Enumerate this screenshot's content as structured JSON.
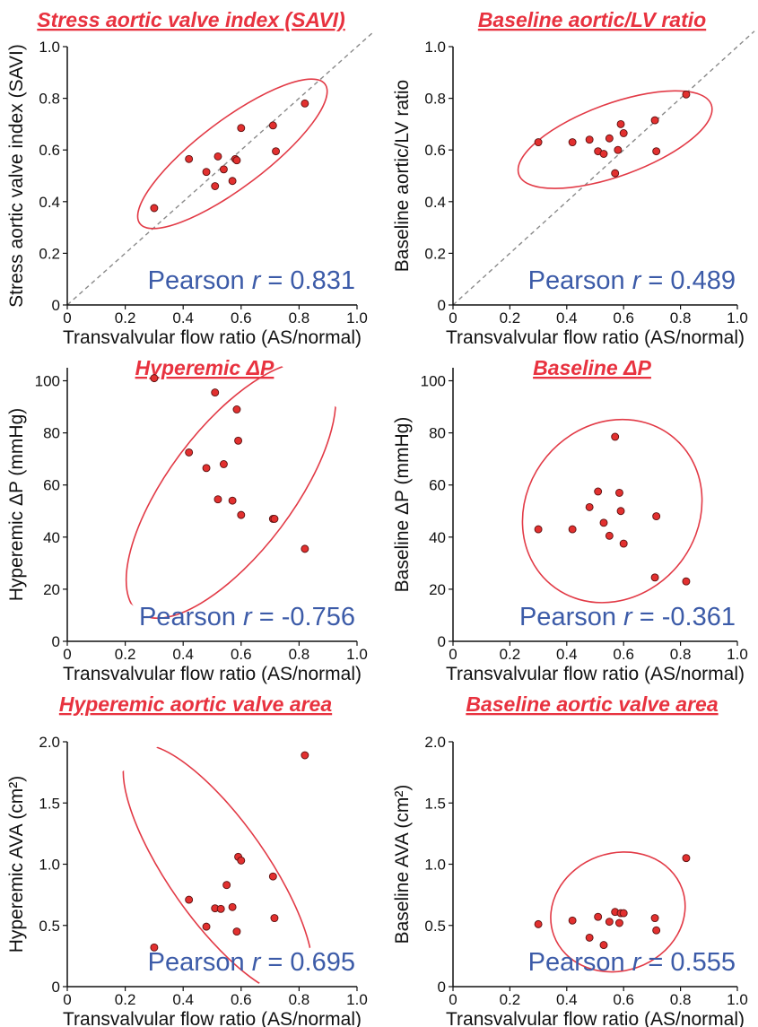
{
  "colors": {
    "title": "#e8323f",
    "ellipse": "#e23a46",
    "point_fill": "#e2302f",
    "point_stroke": "#5a1010",
    "pearson": "#3c5ba8",
    "axis": "#111111",
    "identity_line": "#8a8a8a"
  },
  "chart_data": [
    {
      "type": "scatter",
      "title": "Stress aortic valve index (SAVI)",
      "xlabel": "Transvalvular flow ratio (AS/normal)",
      "ylabel": "Stress aortic valve index (SAVI)",
      "xlim": [
        0,
        1.0
      ],
      "ylim": [
        0,
        1.0
      ],
      "xticks": [
        "0",
        "0.2",
        "0.4",
        "0.6",
        "0.8",
        "1.0"
      ],
      "yticks": [
        "0",
        "0.2",
        "0.4",
        "0.6",
        "0.8",
        "1.0"
      ],
      "identity_line": true,
      "pearson_prefix": "Pearson",
      "pearson_r": "r",
      "pearson_value": "= 0.831",
      "points": [
        {
          "x": 0.3,
          "y": 0.375
        },
        {
          "x": 0.42,
          "y": 0.565
        },
        {
          "x": 0.48,
          "y": 0.515
        },
        {
          "x": 0.51,
          "y": 0.46
        },
        {
          "x": 0.52,
          "y": 0.575
        },
        {
          "x": 0.54,
          "y": 0.525
        },
        {
          "x": 0.57,
          "y": 0.48
        },
        {
          "x": 0.58,
          "y": 0.565
        },
        {
          "x": 0.585,
          "y": 0.56
        },
        {
          "x": 0.6,
          "y": 0.685
        },
        {
          "x": 0.71,
          "y": 0.695
        },
        {
          "x": 0.72,
          "y": 0.595
        },
        {
          "x": 0.82,
          "y": 0.78
        }
      ],
      "ellipse": {
        "cx": 0.57,
        "cy": 0.585,
        "rx": 0.4,
        "ry": 0.13,
        "angle": 37
      }
    },
    {
      "type": "scatter",
      "title": "Baseline aortic/LV ratio",
      "xlabel": "Transvalvular flow ratio (AS/normal)",
      "ylabel": "Baseline aortic/LV ratio",
      "xlim": [
        0,
        1.0
      ],
      "ylim": [
        0,
        1.0
      ],
      "xticks": [
        "0",
        "0.2",
        "0.4",
        "0.6",
        "0.8",
        "1.0"
      ],
      "yticks": [
        "0",
        "0.2",
        "0.4",
        "0.6",
        "0.8",
        "1.0"
      ],
      "identity_line": true,
      "pearson_prefix": "Pearson",
      "pearson_r": "r",
      "pearson_value": "= 0.489",
      "points": [
        {
          "x": 0.3,
          "y": 0.63
        },
        {
          "x": 0.42,
          "y": 0.63
        },
        {
          "x": 0.48,
          "y": 0.64
        },
        {
          "x": 0.51,
          "y": 0.595
        },
        {
          "x": 0.53,
          "y": 0.585
        },
        {
          "x": 0.55,
          "y": 0.645
        },
        {
          "x": 0.57,
          "y": 0.51
        },
        {
          "x": 0.58,
          "y": 0.6
        },
        {
          "x": 0.59,
          "y": 0.7
        },
        {
          "x": 0.6,
          "y": 0.665
        },
        {
          "x": 0.71,
          "y": 0.715
        },
        {
          "x": 0.715,
          "y": 0.595
        },
        {
          "x": 0.82,
          "y": 0.815
        }
      ],
      "ellipse": {
        "cx": 0.57,
        "cy": 0.64,
        "rx": 0.36,
        "ry": 0.14,
        "angle": 20
      }
    },
    {
      "type": "scatter",
      "title": "Hyperemic ΔP",
      "xlabel": "Transvalvular flow ratio (AS/normal)",
      "ylabel": "Hyperemic ΔP (mmHg)",
      "xlim": [
        0,
        1.0
      ],
      "ylim": [
        0,
        105
      ],
      "yticks_values": [
        0,
        20,
        40,
        60,
        80,
        100
      ],
      "xticks": [
        "0",
        "0.2",
        "0.4",
        "0.6",
        "0.8",
        "1.0"
      ],
      "yticks": [
        "0",
        "20",
        "40",
        "60",
        "80",
        "100"
      ],
      "identity_line": false,
      "pearson_prefix": "Pearson",
      "pearson_r": "r",
      "pearson_value": "= -0.756",
      "points": [
        {
          "x": 0.3,
          "y": 101
        },
        {
          "x": 0.42,
          "y": 72.5
        },
        {
          "x": 0.48,
          "y": 66.5
        },
        {
          "x": 0.51,
          "y": 95.5
        },
        {
          "x": 0.52,
          "y": 54.5
        },
        {
          "x": 0.54,
          "y": 68
        },
        {
          "x": 0.57,
          "y": 54
        },
        {
          "x": 0.585,
          "y": 89
        },
        {
          "x": 0.59,
          "y": 77
        },
        {
          "x": 0.6,
          "y": 48.5
        },
        {
          "x": 0.71,
          "y": 47
        },
        {
          "x": 0.715,
          "y": 47
        },
        {
          "x": 0.82,
          "y": 35.5
        }
      ],
      "ellipse": {
        "cx": 0.565,
        "cy": 58,
        "rx": 0.215,
        "ry": 0.56,
        "angle": -37
      }
    },
    {
      "type": "scatter",
      "title": "Baseline ΔP",
      "xlabel": "Transvalvular flow ratio (AS/normal)",
      "ylabel": "Baseline ΔP (mmHg)",
      "xlim": [
        0,
        1.0
      ],
      "ylim": [
        0,
        105
      ],
      "yticks_values": [
        0,
        20,
        40,
        60,
        80,
        100
      ],
      "xticks": [
        "0",
        "0.2",
        "0.4",
        "0.6",
        "0.8",
        "1.0"
      ],
      "yticks": [
        "0",
        "20",
        "40",
        "60",
        "80",
        "100"
      ],
      "identity_line": false,
      "pearson_prefix": "Pearson",
      "pearson_r": "r",
      "pearson_value": "= -0.361",
      "points": [
        {
          "x": 0.3,
          "y": 43
        },
        {
          "x": 0.42,
          "y": 43
        },
        {
          "x": 0.48,
          "y": 51.5
        },
        {
          "x": 0.51,
          "y": 57.5
        },
        {
          "x": 0.53,
          "y": 45.5
        },
        {
          "x": 0.55,
          "y": 40.5
        },
        {
          "x": 0.57,
          "y": 78.5
        },
        {
          "x": 0.585,
          "y": 57
        },
        {
          "x": 0.59,
          "y": 50
        },
        {
          "x": 0.6,
          "y": 37.5
        },
        {
          "x": 0.71,
          "y": 24.5
        },
        {
          "x": 0.715,
          "y": 48
        },
        {
          "x": 0.82,
          "y": 23
        }
      ],
      "ellipse": {
        "cx": 0.56,
        "cy": 50,
        "rx": 0.3,
        "ry": 0.35,
        "angle": -40
      }
    },
    {
      "type": "scatter",
      "title": "Hyperemic aortic valve area",
      "xlabel": "Transvalvular flow ratio (AS/normal)",
      "ylabel": "Hyperemic AVA (cm²)",
      "xlim": [
        0,
        1.0
      ],
      "ylim": [
        0,
        2.0
      ],
      "xticks": [
        "0",
        "0.2",
        "0.4",
        "0.6",
        "0.8",
        "1.0"
      ],
      "yticks": [
        "0",
        "0.5",
        "1.0",
        "1.5",
        "2.0"
      ],
      "yticks_values": [
        0,
        0.5,
        1.0,
        1.5,
        2.0
      ],
      "identity_line": false,
      "pearson_prefix": "Pearson",
      "pearson_r": "r",
      "pearson_value": "= 0.695",
      "points": [
        {
          "x": 0.3,
          "y": 0.32
        },
        {
          "x": 0.42,
          "y": 0.71
        },
        {
          "x": 0.48,
          "y": 0.49
        },
        {
          "x": 0.51,
          "y": 0.64
        },
        {
          "x": 0.53,
          "y": 0.635
        },
        {
          "x": 0.55,
          "y": 0.83
        },
        {
          "x": 0.57,
          "y": 0.65
        },
        {
          "x": 0.585,
          "y": 0.45
        },
        {
          "x": 0.59,
          "y": 1.06
        },
        {
          "x": 0.6,
          "y": 1.03
        },
        {
          "x": 0.71,
          "y": 0.9
        },
        {
          "x": 0.715,
          "y": 0.56
        },
        {
          "x": 0.82,
          "y": 1.89
        }
      ],
      "ellipse": {
        "cx": 0.52,
        "cy": 0.95,
        "rx": 0.17,
        "ry": 0.61,
        "angle": 35
      }
    },
    {
      "type": "scatter",
      "title": "Baseline aortic valve area",
      "xlabel": "Transvalvular flow ratio (AS/normal)",
      "ylabel": "Baseline AVA (cm²)",
      "xlim": [
        0,
        1.0
      ],
      "ylim": [
        0,
        2.0
      ],
      "xticks": [
        "0",
        "0.2",
        "0.4",
        "0.6",
        "0.8",
        "1.0"
      ],
      "yticks": [
        "0",
        "0.5",
        "1.0",
        "1.5",
        "2.0"
      ],
      "yticks_values": [
        0,
        0.5,
        1.0,
        1.5,
        2.0
      ],
      "identity_line": false,
      "pearson_prefix": "Pearson",
      "pearson_r": "r",
      "pearson_value": "= 0.555",
      "points": [
        {
          "x": 0.3,
          "y": 0.51
        },
        {
          "x": 0.42,
          "y": 0.54
        },
        {
          "x": 0.48,
          "y": 0.4
        },
        {
          "x": 0.51,
          "y": 0.57
        },
        {
          "x": 0.53,
          "y": 0.34
        },
        {
          "x": 0.55,
          "y": 0.53
        },
        {
          "x": 0.57,
          "y": 0.61
        },
        {
          "x": 0.585,
          "y": 0.52
        },
        {
          "x": 0.59,
          "y": 0.6
        },
        {
          "x": 0.6,
          "y": 0.6
        },
        {
          "x": 0.71,
          "y": 0.56
        },
        {
          "x": 0.715,
          "y": 0.46
        },
        {
          "x": 0.82,
          "y": 1.05
        }
      ],
      "ellipse": {
        "cx": 0.58,
        "cy": 0.61,
        "rx": 0.24,
        "ry": 0.24,
        "angle": 20
      }
    }
  ]
}
